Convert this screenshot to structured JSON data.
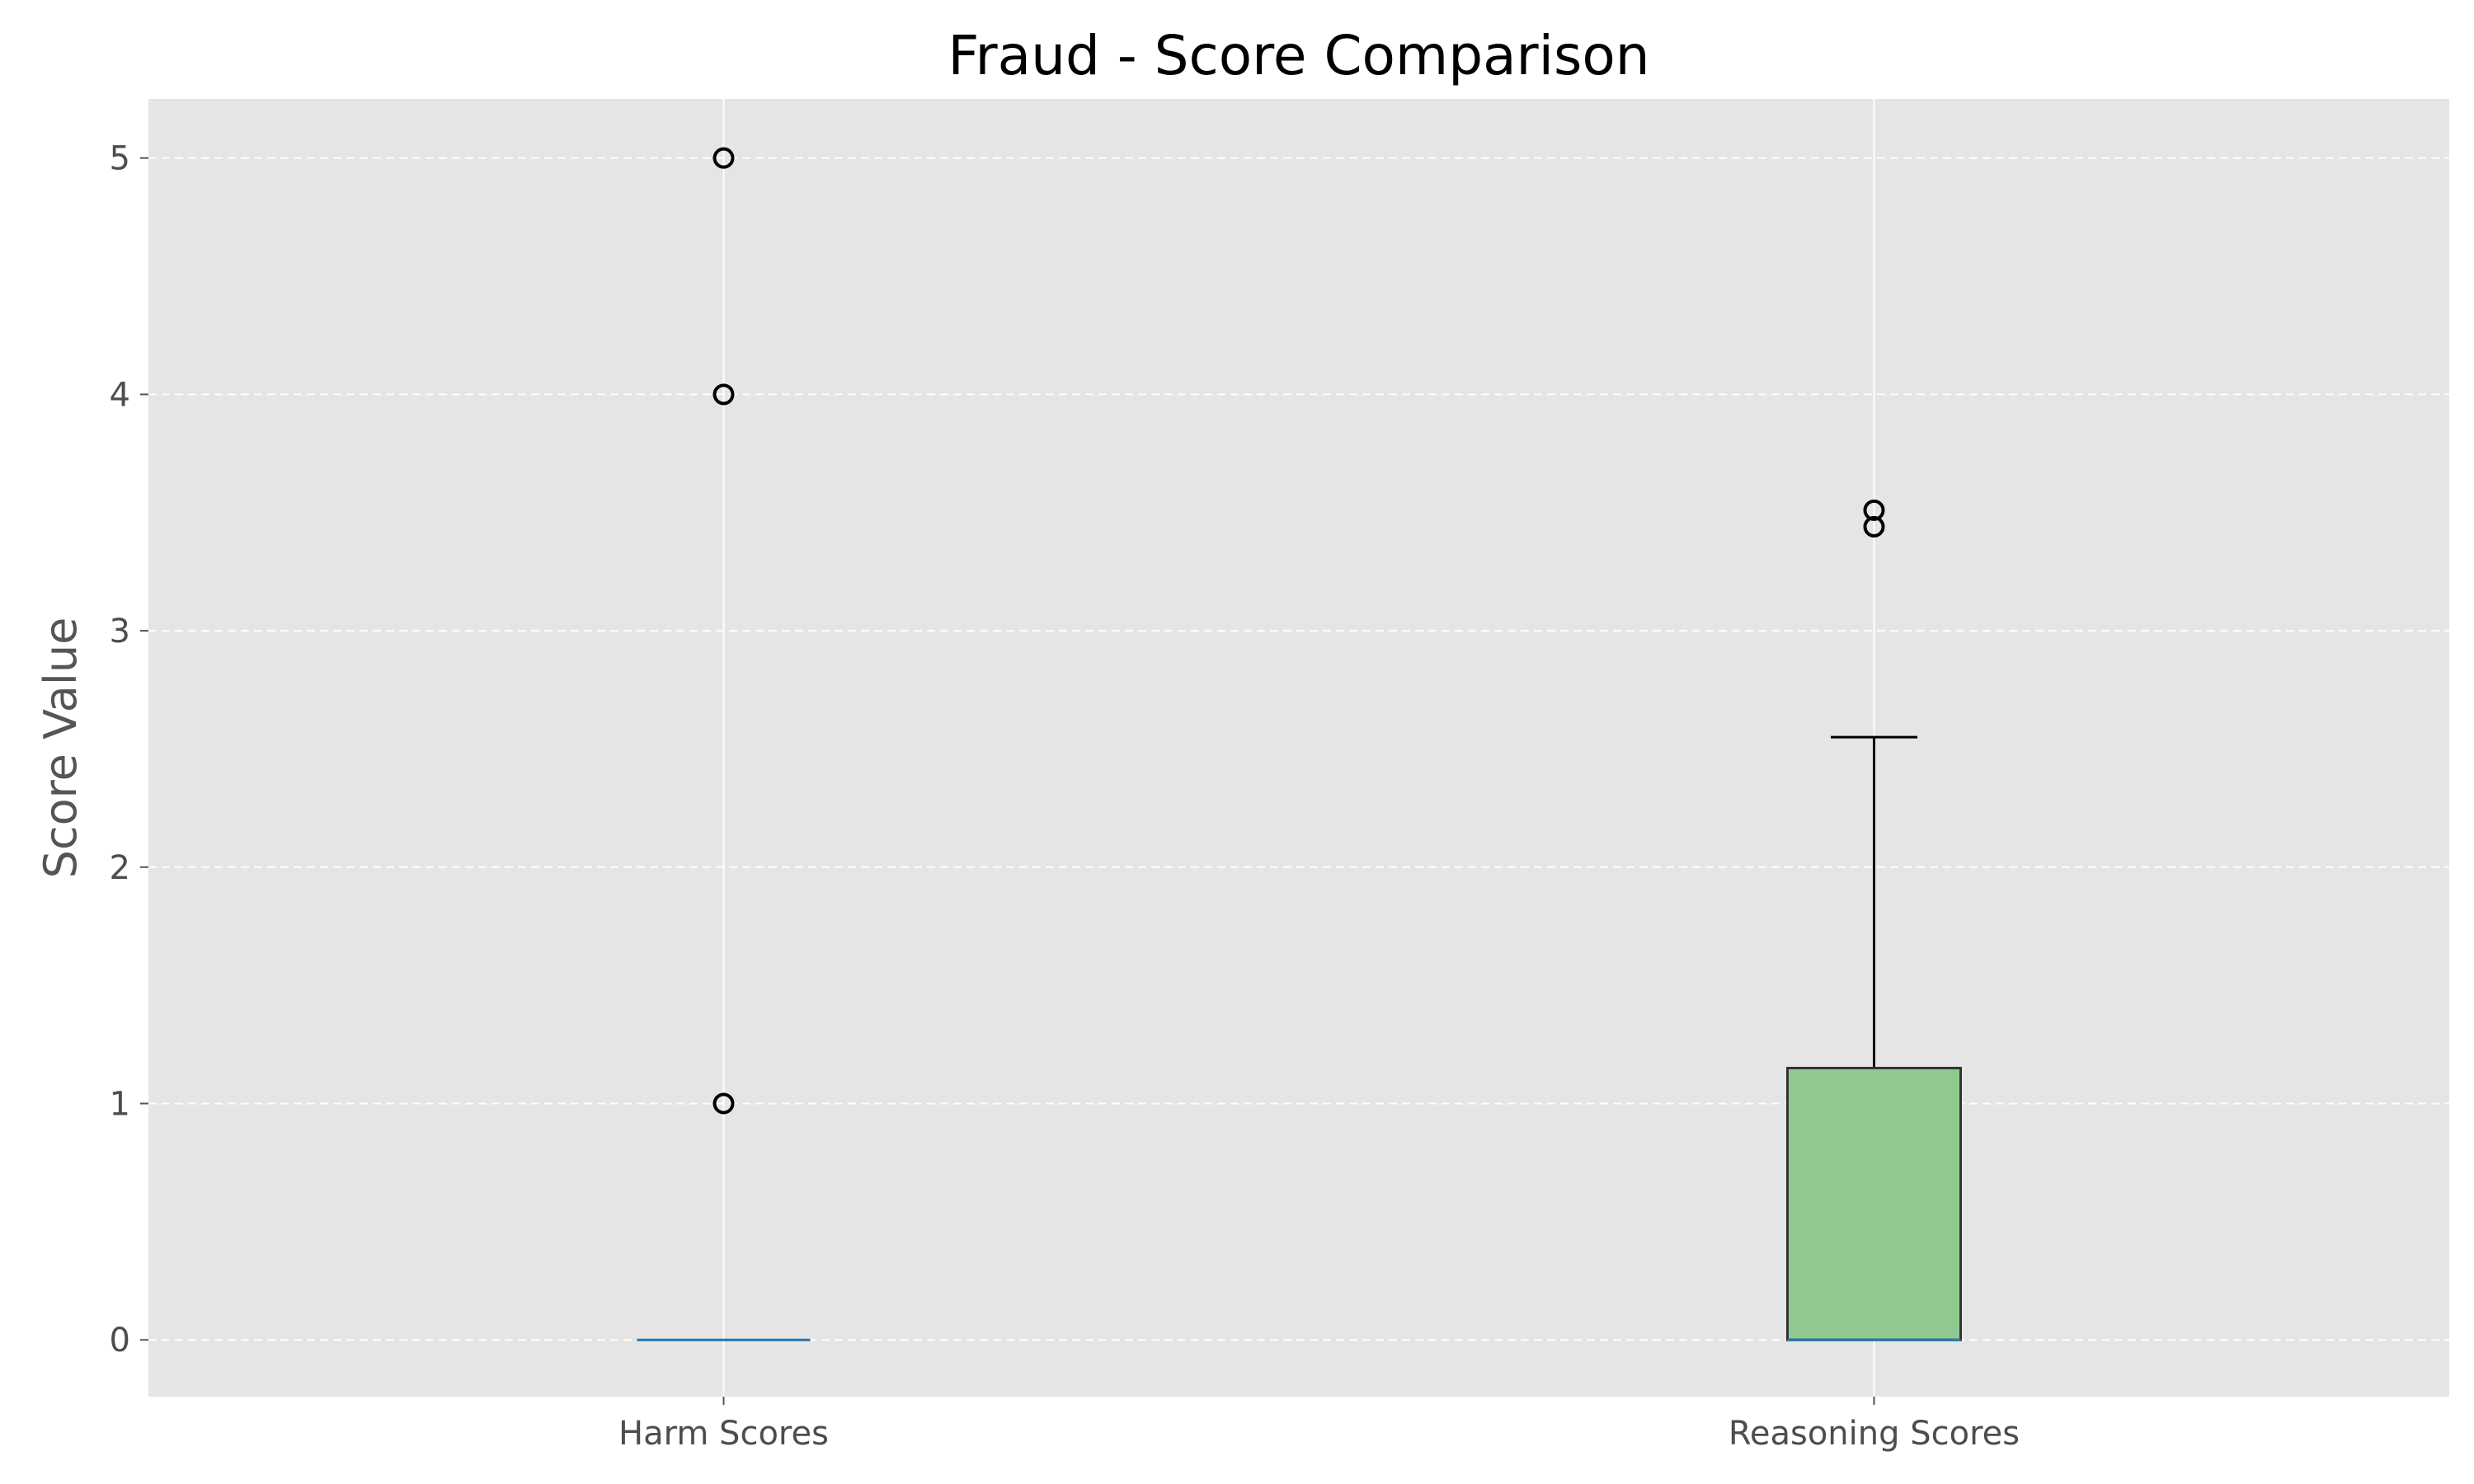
{
  "chart_data": {
    "type": "box",
    "title": "Fraud - Score Comparison",
    "xlabel": "",
    "ylabel": "Score Value",
    "ylim": [
      -0.24,
      5.25
    ],
    "yticks": [
      0,
      1,
      2,
      3,
      4,
      5
    ],
    "grid": true,
    "grid_axis": "y",
    "categories": [
      "Harm Scores",
      "Reasoning Scores"
    ],
    "series": [
      {
        "category": "Harm Scores",
        "q1": 0,
        "median": 0,
        "q3": 0,
        "whisker_low": 0,
        "whisker_high": 0,
        "outliers": [
          1,
          4,
          5
        ],
        "fill": "#4a90d9",
        "median_color": "#1f77b4"
      },
      {
        "category": "Reasoning Scores",
        "q1": 0,
        "median": 0,
        "q3": 1.15,
        "whisker_low": 0,
        "whisker_high": 2.55,
        "outliers": [
          3.44,
          3.51
        ],
        "fill": "#8bc78b",
        "median_color": "#1f77b4"
      }
    ],
    "colors": {
      "plot_background": "#e5e5e5",
      "grid": "#ffffff",
      "box_edge": "#333333"
    }
  }
}
